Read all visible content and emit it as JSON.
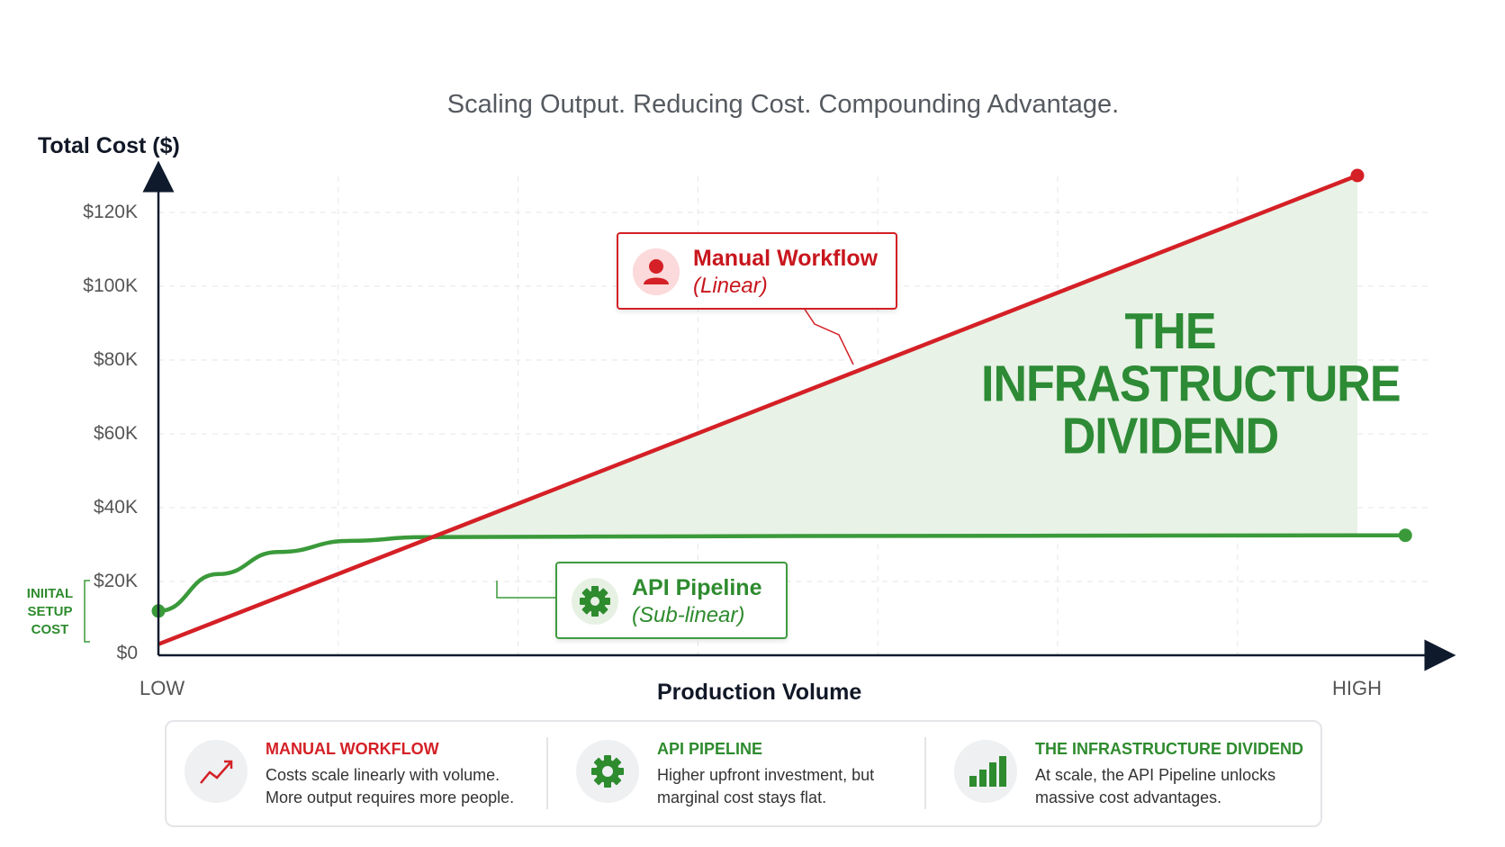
{
  "chart_data": {
    "type": "line",
    "title": "",
    "subtitle": "Scaling Output. Reducing Cost. Compounding Advantage.",
    "ylabel": "Total Cost ($)",
    "xlabel": "Production Volume",
    "x_range_labels": [
      "LOW",
      "HIGH"
    ],
    "ylim": [
      0,
      130000
    ],
    "y_ticks": [
      {
        "value": 0,
        "label": "$0"
      },
      {
        "value": 20000,
        "label": "$20K"
      },
      {
        "value": 40000,
        "label": "$40K"
      },
      {
        "value": 60000,
        "label": "$60K"
      },
      {
        "value": 80000,
        "label": "$80K"
      },
      {
        "value": 100000,
        "label": "$100K"
      },
      {
        "value": 120000,
        "label": "$120K"
      }
    ],
    "grid": true,
    "series": [
      {
        "name": "Manual Workflow",
        "note": "(Linear)",
        "color": "#d42026",
        "points": [
          [
            0,
            3000
          ],
          [
            1,
            130000
          ]
        ]
      },
      {
        "name": "API Pipeline",
        "note": "(Sub-linear)",
        "color": "#3a9a3a",
        "points": [
          [
            0,
            12000
          ],
          [
            0.05,
            22000
          ],
          [
            0.1,
            28000
          ],
          [
            0.16,
            31000
          ],
          [
            0.22,
            32000
          ],
          [
            0.5,
            32300
          ],
          [
            1,
            32500
          ],
          [
            1.04,
            32500
          ]
        ]
      }
    ],
    "annotations": {
      "setup_label": "INIITAL SETUP COST",
      "dividend_label": "THE INFRASTRUCTURE DIVIDEND"
    }
  },
  "legend": [
    {
      "title": "MANUAL WORKFLOW",
      "text": "Costs scale linearly with volume. More output requires more people.",
      "color": "#d42026",
      "icon": "trend-up-icon"
    },
    {
      "title": "API PIPELINE",
      "text": "Higher upfront investment, but marginal cost stays flat.",
      "color": "#2e8b2e",
      "icon": "gear-icon"
    },
    {
      "title": "THE INFRASTRUCTURE DIVIDEND",
      "text": "At scale, the API Pipeline unlocks massive cost advantages.",
      "color": "#2e8b2e",
      "icon": "bar-chart-icon"
    }
  ],
  "colors": {
    "red": "#d42026",
    "green": "#3a9a3a",
    "dividend_fill": "#e8f2e6"
  }
}
